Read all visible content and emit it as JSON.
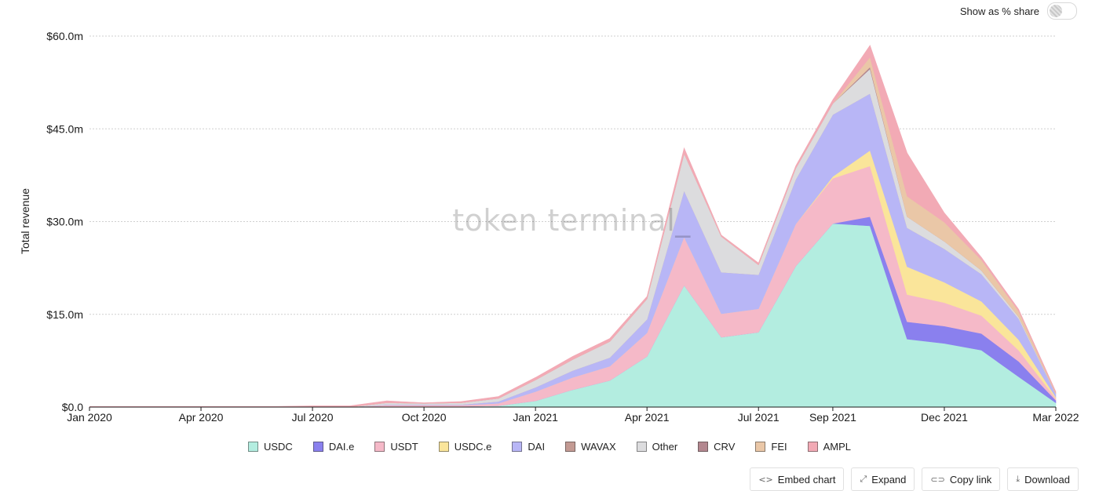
{
  "controls": {
    "share_toggle_label": "Show as % share",
    "share_toggle_on": false
  },
  "watermark": "token terminal_",
  "chart_data": {
    "type": "area",
    "stacked": true,
    "ylabel": "Total revenue",
    "ylim": [
      0,
      60000000
    ],
    "yticks": [
      0,
      15000000,
      30000000,
      45000000,
      60000000
    ],
    "ytick_labels": [
      "$0.0",
      "$15.0m",
      "$30.0m",
      "$45.0m",
      "$60.0m"
    ],
    "xtick_labels": [
      "Jan 2020",
      "Apr 2020",
      "Jul 2020",
      "Oct 2020",
      "Jan 2021",
      "Apr 2021",
      "Jul 2021",
      "Sep 2021",
      "Dec 2021",
      "Mar 2022"
    ],
    "xtick_index": [
      0,
      3,
      6,
      9,
      12,
      15,
      18,
      20,
      23,
      26
    ],
    "grid": true,
    "legend_position": "bottom",
    "x": [
      "2020-01",
      "2020-02",
      "2020-03",
      "2020-04",
      "2020-05",
      "2020-06",
      "2020-07",
      "2020-08",
      "2020-09",
      "2020-10",
      "2020-11",
      "2020-12",
      "2021-01",
      "2021-02",
      "2021-03",
      "2021-04",
      "2021-05",
      "2021-06",
      "2021-07",
      "2021-08",
      "2021-09",
      "2021-10",
      "2021-11",
      "2021-12",
      "2022-01",
      "2022-02",
      "2022-03"
    ],
    "series": [
      {
        "name": "USDC",
        "color": "#b3ede0",
        "values": [
          0,
          0,
          0,
          0,
          0,
          0,
          0,
          0,
          100000,
          100000,
          100000,
          200000,
          1000000,
          2800000,
          4300000,
          8200000,
          19700000,
          11300000,
          12100000,
          22800000,
          29700000,
          29300000,
          11000000,
          10300000,
          9200000,
          4900000,
          700000
        ]
      },
      {
        "name": "DAI.e",
        "color": "#8a80ee",
        "values": [
          0,
          0,
          0,
          0,
          0,
          0,
          0,
          0,
          0,
          0,
          0,
          0,
          0,
          0,
          0,
          0,
          0,
          0,
          0,
          0,
          0,
          1500000,
          2800000,
          2800000,
          2700000,
          2500000,
          400000
        ]
      },
      {
        "name": "USDT",
        "color": "#f5b9c8",
        "values": [
          0,
          0,
          0,
          0,
          0,
          0,
          0,
          0,
          200000,
          200000,
          200000,
          400000,
          1500000,
          2000000,
          2300000,
          3800000,
          7800000,
          3800000,
          3800000,
          6800000,
          7300000,
          8200000,
          4400000,
          3800000,
          2900000,
          1800000,
          300000
        ]
      },
      {
        "name": "USDC.e",
        "color": "#fae59a",
        "values": [
          0,
          0,
          0,
          0,
          0,
          0,
          0,
          0,
          0,
          0,
          0,
          0,
          0,
          0,
          0,
          0,
          0,
          0,
          0,
          0,
          300000,
          2500000,
          4500000,
          3300000,
          2300000,
          1700000,
          200000
        ]
      },
      {
        "name": "DAI",
        "color": "#b8b6f6",
        "values": [
          0,
          0,
          0,
          0,
          0,
          0,
          0,
          0,
          100000,
          100000,
          100000,
          300000,
          700000,
          1100000,
          1400000,
          2200000,
          7500000,
          6700000,
          5500000,
          7200000,
          10000000,
          9200000,
          6300000,
          5400000,
          4400000,
          3400000,
          500000
        ]
      },
      {
        "name": "WAVAX",
        "color": "#c39a93",
        "values": [
          0,
          0,
          0,
          0,
          0,
          0,
          0,
          0,
          0,
          0,
          0,
          0,
          0,
          0,
          0,
          0,
          0,
          0,
          0,
          0,
          0,
          0,
          0,
          0,
          0,
          0,
          0
        ]
      },
      {
        "name": "Other",
        "color": "#dcdcde",
        "values": [
          0,
          0,
          0,
          0,
          0,
          0,
          0,
          0,
          300000,
          200000,
          300000,
          500000,
          1200000,
          1800000,
          2600000,
          3300000,
          6000000,
          5800000,
          1600000,
          1800000,
          1800000,
          4000000,
          1800000,
          1200000,
          600000,
          300000,
          100000
        ]
      },
      {
        "name": "CRV",
        "color": "#b3878f",
        "values": [
          0,
          0,
          0,
          0,
          0,
          0,
          0,
          0,
          0,
          0,
          0,
          0,
          0,
          0,
          0,
          0,
          0,
          0,
          0,
          0,
          0,
          300000,
          0,
          0,
          0,
          0,
          0
        ]
      },
      {
        "name": "FEI",
        "color": "#eac7a7",
        "values": [
          0,
          0,
          0,
          0,
          0,
          0,
          0,
          0,
          0,
          0,
          0,
          0,
          0,
          0,
          0,
          0,
          0,
          0,
          0,
          0,
          0,
          1600000,
          3300000,
          3100000,
          1700000,
          900000,
          100000
        ]
      },
      {
        "name": "AMPL",
        "color": "#f2aab5",
        "values": [
          100000,
          100000,
          100000,
          100000,
          100000,
          100000,
          200000,
          200000,
          300000,
          100000,
          200000,
          300000,
          400000,
          500000,
          500000,
          400000,
          900000,
          200000,
          300000,
          400000,
          600000,
          1900000,
          7000000,
          1500000,
          400000,
          300000,
          200000
        ]
      }
    ]
  },
  "actions": {
    "embed_label": "Embed chart",
    "expand_label": "Expand",
    "copy_label": "Copy link",
    "download_label": "Download"
  }
}
